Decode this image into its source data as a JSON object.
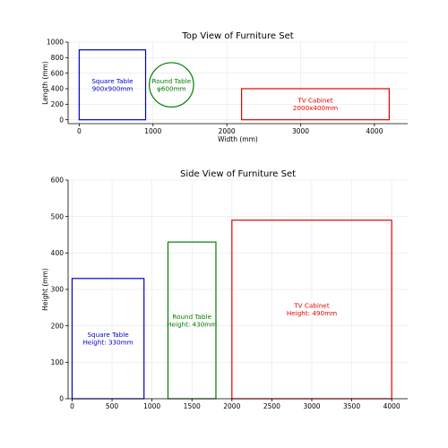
{
  "chart_data": [
    {
      "type": "shapes",
      "title": "Top View of Furniture Set",
      "xlabel": "Width (mm)",
      "ylabel": "Length (mm)",
      "xlim": [
        -150,
        4450
      ],
      "ylim": [
        -50,
        1000
      ],
      "xticks": [
        0,
        1000,
        2000,
        3000,
        4000
      ],
      "yticks": [
        0,
        200,
        400,
        600,
        800,
        1000
      ],
      "grid": true,
      "items": [
        {
          "kind": "rect",
          "name": "square-table",
          "x": 0,
          "y": 0,
          "w": 900,
          "h": 900,
          "color": "#0000cc",
          "label_lines": [
            "Square Table",
            "900x900mm"
          ]
        },
        {
          "kind": "circle",
          "name": "round-table",
          "cx": 1250,
          "cy": 450,
          "r": 300,
          "color": "#007f00",
          "label_lines": [
            "Round Table",
            "φ600mm"
          ]
        },
        {
          "kind": "rect",
          "name": "tv-cabinet",
          "x": 2200,
          "y": 0,
          "w": 2000,
          "h": 400,
          "color": "#e60000",
          "label_lines": [
            "TV Cabinet",
            "2000x400mm"
          ]
        }
      ]
    },
    {
      "type": "shapes",
      "title": "Side View of Furniture Set",
      "xlabel": "",
      "ylabel": "Height (mm)",
      "xlim": [
        -50,
        4200
      ],
      "ylim": [
        0,
        600
      ],
      "xticks": [
        0,
        500,
        1000,
        1500,
        2000,
        2500,
        3000,
        3500,
        4000
      ],
      "yticks": [
        0,
        100,
        200,
        300,
        400,
        500,
        600
      ],
      "grid": true,
      "items": [
        {
          "kind": "rect",
          "name": "square-table",
          "x": 0,
          "y": 0,
          "w": 900,
          "h": 330,
          "color": "#0000cc",
          "label_lines": [
            "Square Table",
            "Height: 330mm"
          ]
        },
        {
          "kind": "rect",
          "name": "round-table",
          "x": 1200,
          "y": 0,
          "w": 600,
          "h": 430,
          "color": "#007f00",
          "label_lines": [
            "Round Table",
            "Height: 430mm"
          ]
        },
        {
          "kind": "rect",
          "name": "tv-cabinet",
          "x": 2000,
          "y": 0,
          "w": 2000,
          "h": 490,
          "color": "#e60000",
          "label_lines": [
            "TV Cabinet",
            "Height: 490mm"
          ]
        }
      ]
    }
  ]
}
